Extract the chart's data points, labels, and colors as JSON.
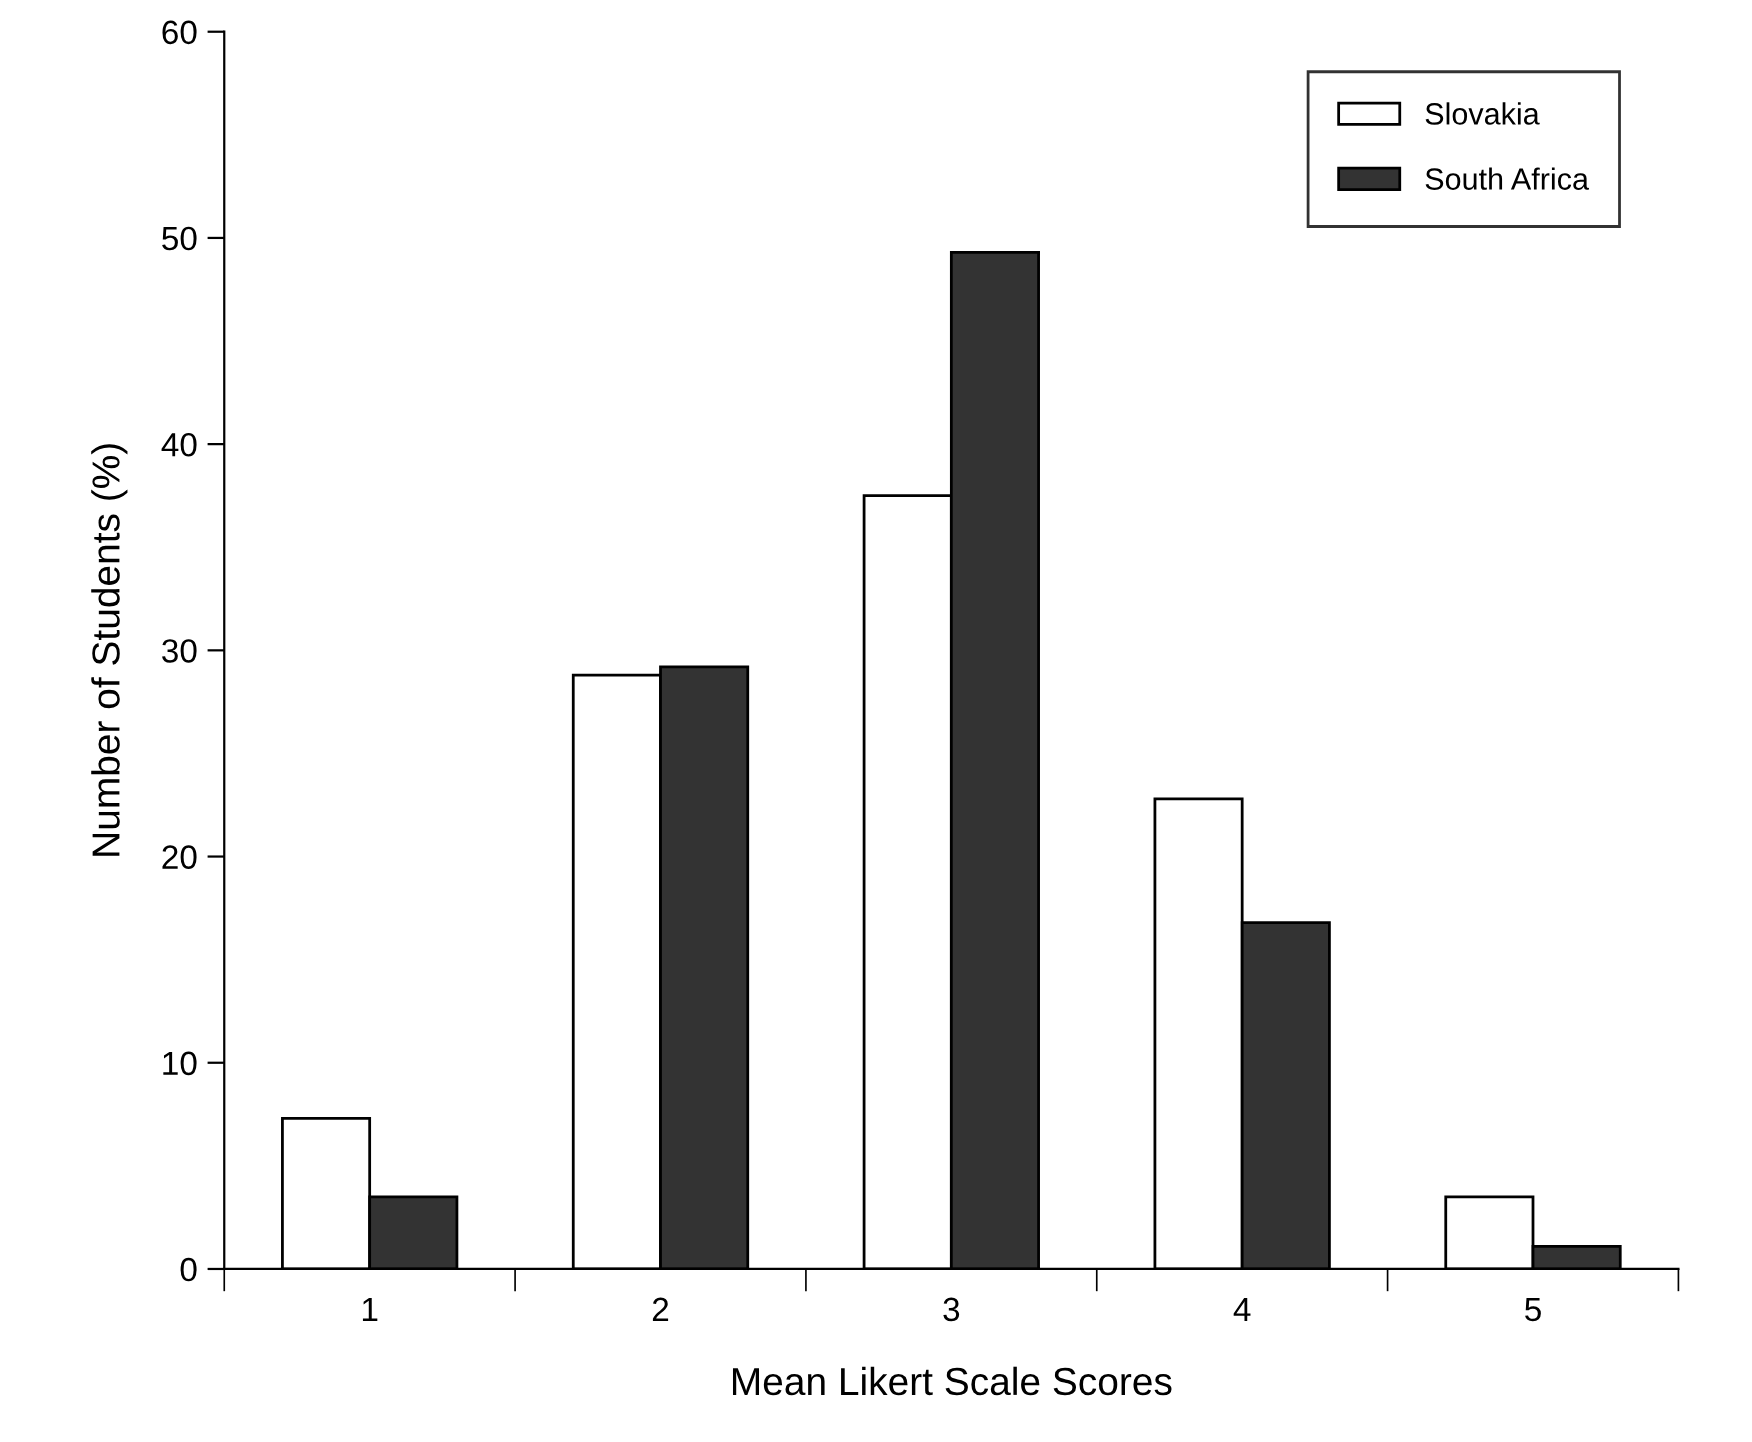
{
  "chart_data": {
    "type": "bar",
    "xlabel": "Mean Likert Scale Scores",
    "ylabel": "Number of Students (%)",
    "categories": [
      "1",
      "2",
      "3",
      "4",
      "5"
    ],
    "series": [
      {
        "name": "Slovakia",
        "color": "#ffffff",
        "values": [
          7.3,
          28.8,
          37.5,
          22.8,
          3.5
        ]
      },
      {
        "name": "South Africa",
        "color": "#333333",
        "values": [
          3.5,
          29.2,
          49.3,
          16.8,
          1.1
        ]
      }
    ],
    "ylim": [
      0,
      60
    ],
    "yticks": [
      0,
      10,
      20,
      30,
      40,
      50,
      60
    ],
    "grid": false,
    "legend": "top right"
  }
}
